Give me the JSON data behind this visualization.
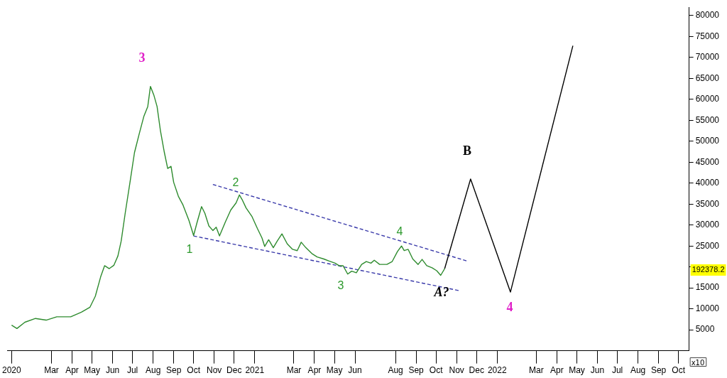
{
  "chart_data": {
    "type": "line",
    "xlim": [
      "2019-12-26",
      "2022-10-17"
    ],
    "ylim": [
      0,
      82000
    ],
    "yticks": [
      5000,
      10000,
      15000,
      {
        "value": 20000,
        "label": null
      },
      25000,
      30000,
      35000,
      40000,
      45000,
      50000,
      55000,
      60000,
      65000,
      70000,
      75000,
      80000
    ],
    "xticks": [
      {
        "value": "2020-01-01",
        "label": "2020"
      },
      {
        "value": "2020-03-01",
        "label": "Mar"
      },
      {
        "value": "2020-04-01",
        "label": "Apr"
      },
      {
        "value": "2020-05-01",
        "label": "May"
      },
      {
        "value": "2020-06-01",
        "label": "Jun"
      },
      {
        "value": "2020-07-01",
        "label": "Jul"
      },
      {
        "value": "2020-08-01",
        "label": "Aug"
      },
      {
        "value": "2020-09-01",
        "label": "Sep"
      },
      {
        "value": "2020-10-01",
        "label": "Oct"
      },
      {
        "value": "2020-11-01",
        "label": "Nov"
      },
      {
        "value": "2020-12-01",
        "label": "Dec"
      },
      {
        "value": "2021-01-01",
        "label": "2021"
      },
      {
        "value": "2021-03-01",
        "label": "Mar"
      },
      {
        "value": "2021-04-01",
        "label": "Apr"
      },
      {
        "value": "2021-05-01",
        "label": "May"
      },
      {
        "value": "2021-06-01",
        "label": "Jun"
      },
      {
        "value": "2021-08-01",
        "label": "Aug"
      },
      {
        "value": "2021-09-01",
        "label": "Sep"
      },
      {
        "value": "2021-10-01",
        "label": "Oct"
      },
      {
        "value": "2021-11-01",
        "label": "Nov"
      },
      {
        "value": "2021-12-01",
        "label": "Dec"
      },
      {
        "value": "2022-01-01",
        "label": "2022"
      },
      {
        "value": "2022-03-01",
        "label": "Mar"
      },
      {
        "value": "2022-04-01",
        "label": "Apr"
      },
      {
        "value": "2022-05-01",
        "label": "May"
      },
      {
        "value": "2022-06-01",
        "label": "Jun"
      },
      {
        "value": "2022-07-01",
        "label": "Jul"
      },
      {
        "value": "2022-08-01",
        "label": "Aug"
      },
      {
        "value": "2022-09-01",
        "label": "Sep"
      },
      {
        "value": "2022-10-01",
        "label": "Oct"
      }
    ],
    "grid": false,
    "legend": false,
    "marker": "none",
    "series": [
      {
        "color": "#2e8b2e",
        "line_style": "solid",
        "x": [
          "2020-01-01",
          "2020-01-09",
          "2020-01-21",
          "2020-02-06",
          "2020-02-22",
          "2020-03-09",
          "2020-03-30",
          "2020-04-15",
          "2020-04-28",
          "2020-05-06",
          "2020-05-14",
          "2020-05-20",
          "2020-05-27",
          "2020-06-03",
          "2020-06-09",
          "2020-06-14",
          "2020-06-20",
          "2020-06-28",
          "2020-07-04",
          "2020-07-11",
          "2020-07-18",
          "2020-07-24",
          "2020-07-28",
          "2020-08-02",
          "2020-08-07",
          "2020-08-12",
          "2020-08-18",
          "2020-08-23",
          "2020-08-28",
          "2020-09-01",
          "2020-09-08",
          "2020-09-15",
          "2020-09-24",
          "2020-10-01",
          "2020-10-06",
          "2020-10-13",
          "2020-10-18",
          "2020-10-24",
          "2020-10-30",
          "2020-11-04",
          "2020-11-09",
          "2020-11-18",
          "2020-11-26",
          "2020-12-04",
          "2020-12-09",
          "2020-12-13",
          "2020-12-19",
          "2020-12-28",
          "2021-01-05",
          "2021-01-12",
          "2021-01-16",
          "2021-01-22",
          "2021-01-29",
          "2021-02-04",
          "2021-02-11",
          "2021-02-19",
          "2021-02-27",
          "2021-03-06",
          "2021-03-12",
          "2021-03-19",
          "2021-03-28",
          "2021-04-05",
          "2021-04-15",
          "2021-04-23",
          "2021-05-02",
          "2021-05-08",
          "2021-05-14",
          "2021-05-21",
          "2021-05-27",
          "2021-06-03",
          "2021-06-11",
          "2021-06-18",
          "2021-06-25",
          "2021-06-30",
          "2021-07-08",
          "2021-07-19",
          "2021-07-27",
          "2021-08-04",
          "2021-08-10",
          "2021-08-14",
          "2021-08-20",
          "2021-08-27",
          "2021-09-04",
          "2021-09-10",
          "2021-09-17",
          "2021-09-25",
          "2021-10-02",
          "2021-10-08",
          "2021-10-14"
        ],
        "values": [
          6100,
          5300,
          6800,
          7700,
          7300,
          8100,
          8100,
          9200,
          10400,
          13000,
          17600,
          20300,
          19600,
          20400,
          22600,
          26200,
          32800,
          41000,
          47300,
          51700,
          55900,
          58300,
          63100,
          61100,
          58300,
          52600,
          47300,
          43500,
          44000,
          40200,
          36900,
          34800,
          31100,
          27500,
          30500,
          34400,
          32800,
          29800,
          28700,
          29500,
          27400,
          30800,
          33600,
          35300,
          37200,
          36100,
          34100,
          32000,
          29200,
          26900,
          24900,
          26500,
          24600,
          26200,
          27900,
          25500,
          24200,
          23900,
          25900,
          24600,
          23200,
          22400,
          21900,
          21400,
          20900,
          20300,
          20300,
          18300,
          19000,
          18600,
          20600,
          21300,
          20900,
          21600,
          20600,
          20600,
          21300,
          23700,
          25000,
          23900,
          24200,
          21900,
          20600,
          21800,
          20300,
          19800,
          19100,
          18000,
          19600
        ]
      },
      {
        "color": "#000000",
        "line_style": "solid",
        "x": [
          "2021-10-14",
          "2021-11-22",
          "2022-01-21",
          "2022-04-25"
        ],
        "values": [
          19600,
          41000,
          14000,
          72800
        ]
      },
      {
        "color": "#3a3aaa",
        "line_style": "dashed",
        "x": [
          "2020-10-30",
          "2021-11-17"
        ],
        "values": [
          39700,
          21400
        ]
      },
      {
        "color": "#3a3aaa",
        "line_style": "dashed",
        "x": [
          "2020-10-01",
          "2021-11-06"
        ],
        "values": [
          27400,
          14300
        ]
      }
    ],
    "annotations": [
      "3",
      "1",
      "2",
      "3",
      "4",
      "B",
      "A?",
      "4",
      "192378.2",
      "x10"
    ]
  }
}
